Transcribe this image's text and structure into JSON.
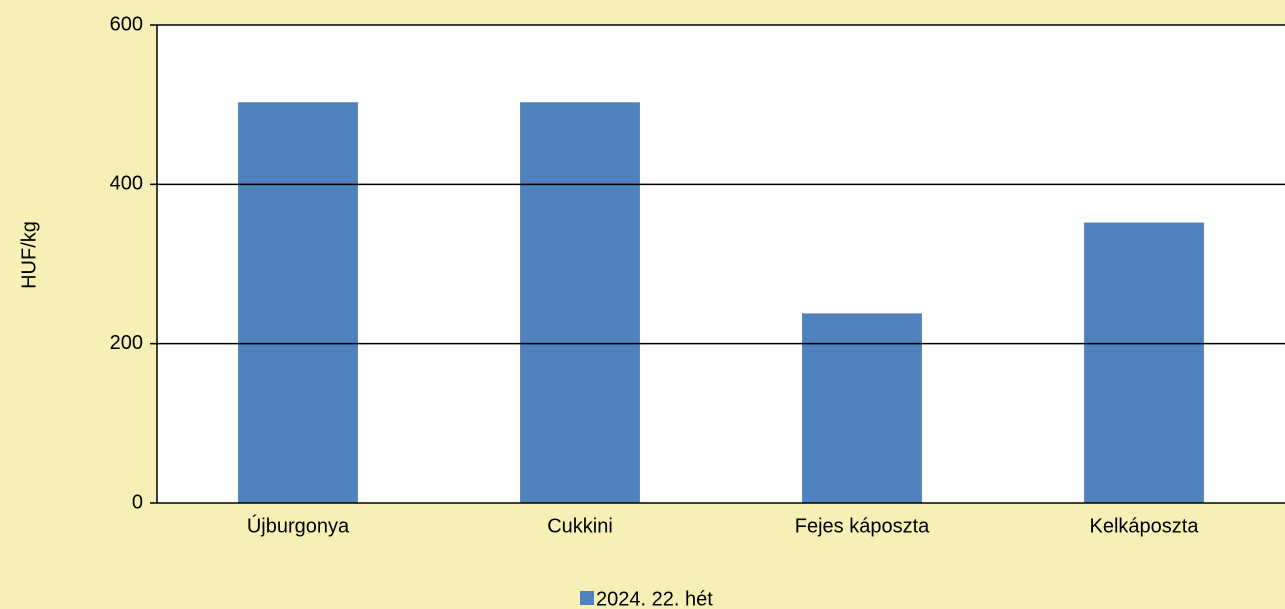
{
  "chart_data": {
    "type": "bar",
    "y_label": "HUF/kg",
    "categories": [
      "Újburgonya",
      "Cukkini",
      "Fejes káposzta",
      "Kelkáposzta"
    ],
    "series": [
      {
        "name": "2024. 22. hét",
        "color": "#4f81bd",
        "values": [
          503,
          503,
          238,
          352
        ]
      }
    ],
    "ylim": [
      0,
      600
    ],
    "yticks": [
      0,
      200,
      400,
      600
    ],
    "grid": true,
    "legend": "bottom"
  }
}
